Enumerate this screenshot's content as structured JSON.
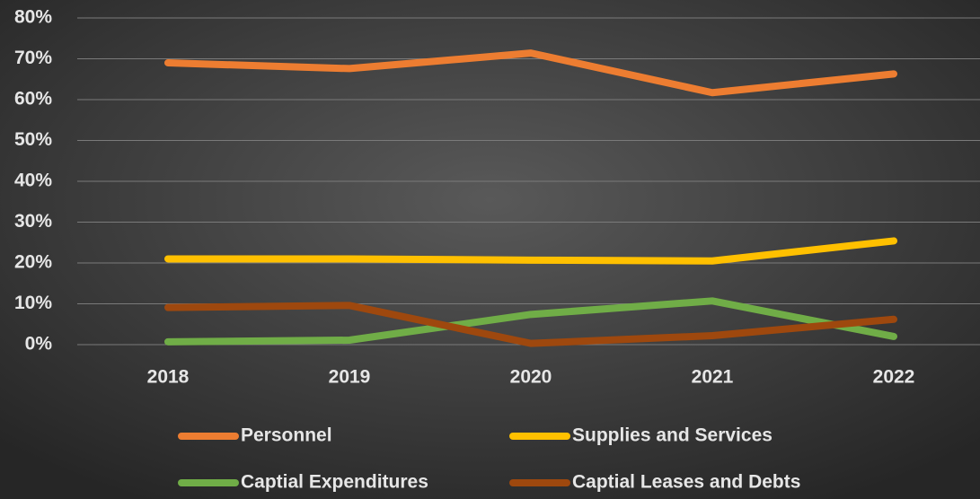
{
  "chart_data": {
    "type": "line",
    "categories": [
      "2018",
      "2019",
      "2020",
      "2021",
      "2022"
    ],
    "series": [
      {
        "name": "Personnel",
        "color": "#ed7d31",
        "values": [
          69,
          67.6,
          71.4,
          61.7,
          66.3
        ]
      },
      {
        "name": "Supplies and Services",
        "color": "#ffc000",
        "values": [
          21,
          21,
          20.7,
          20.5,
          25.4
        ]
      },
      {
        "name": "Captial Expenditures",
        "color": "#70ad47",
        "values": [
          0.7,
          1.1,
          7.4,
          10.7,
          2
        ]
      },
      {
        "name": "Captial Leases and Debts",
        "color": "#9e480e",
        "values": [
          9.1,
          9.6,
          0.3,
          2.2,
          6.2
        ]
      }
    ],
    "ylim": [
      0,
      80
    ],
    "yticks": [
      {
        "value": 0,
        "label": "0%"
      },
      {
        "value": 10,
        "label": "10%"
      },
      {
        "value": 20,
        "label": "20%"
      },
      {
        "value": 30,
        "label": "30%"
      },
      {
        "value": 40,
        "label": "40%"
      },
      {
        "value": 50,
        "label": "50%"
      },
      {
        "value": 60,
        "label": "60%"
      },
      {
        "value": 70,
        "label": "70%"
      },
      {
        "value": 80,
        "label": "80%"
      }
    ],
    "grid": true,
    "legend": "bottom"
  }
}
